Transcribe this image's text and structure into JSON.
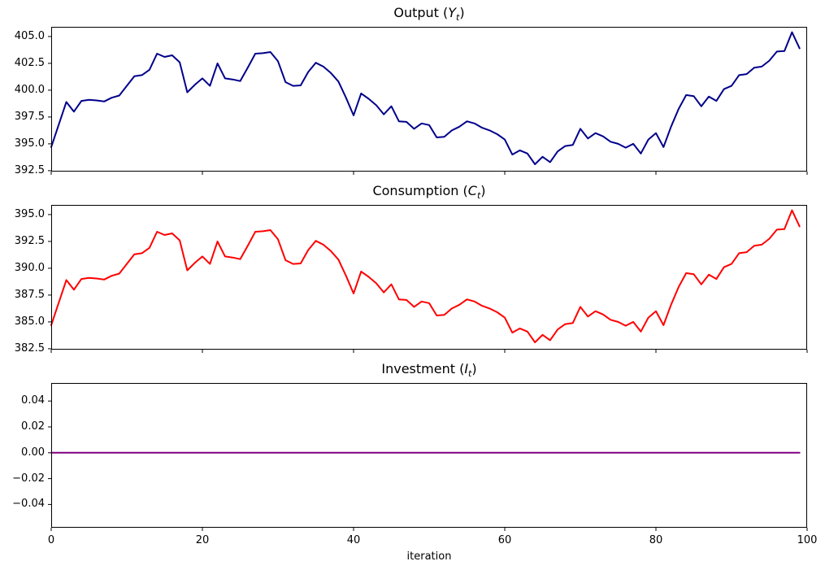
{
  "figure": {
    "background": "#ffffff",
    "frame_color": "#000000"
  },
  "chart_data": {
    "type": "line",
    "layout": "3 vertically stacked subplots, shared x axis, grid off, no legend, box spines",
    "x_axis": {
      "label": "iteration",
      "xlim": [
        0,
        100
      ],
      "ticks": [
        0,
        20,
        40,
        60,
        80,
        100
      ],
      "tick_labels": [
        "0",
        "20",
        "40",
        "60",
        "80",
        "100"
      ]
    },
    "charts": [
      {
        "name": "output",
        "title": {
          "prefix": "Output (",
          "var": "Y",
          "sub": "t",
          "suffix": ")"
        },
        "color": "#00008B",
        "ylim": [
          392.42,
          405.9
        ],
        "yticks": [
          405.0,
          402.5,
          400.0,
          397.5,
          395.0,
          392.5
        ],
        "ytick_labels": [
          "405.0",
          "402.5",
          "400.0",
          "397.5",
          "395.0",
          "392.5"
        ],
        "values": [
          394.7,
          396.8,
          398.9,
          398.0,
          399.0,
          399.1,
          399.05,
          398.95,
          399.3,
          399.5,
          400.4,
          401.3,
          401.4,
          401.9,
          403.4,
          403.1,
          403.25,
          402.6,
          399.8,
          400.5,
          401.1,
          400.4,
          402.5,
          401.1,
          401.0,
          400.85,
          402.1,
          403.4,
          403.45,
          403.55,
          402.7,
          400.75,
          400.4,
          400.45,
          401.7,
          402.55,
          402.2,
          401.6,
          400.8,
          399.3,
          397.65,
          399.7,
          399.2,
          398.6,
          397.75,
          398.5,
          397.1,
          397.05,
          396.4,
          396.9,
          396.75,
          395.6,
          395.65,
          396.25,
          396.6,
          397.1,
          396.9,
          396.5,
          396.25,
          395.9,
          395.4,
          394.0,
          394.4,
          394.1,
          393.1,
          393.8,
          393.3,
          394.3,
          394.8,
          394.9,
          396.4,
          395.5,
          396.0,
          395.7,
          395.2,
          395.0,
          394.65,
          395.0,
          394.1,
          395.4,
          396.0,
          394.7,
          396.6,
          398.25,
          399.55,
          399.45,
          398.5,
          399.4,
          399.0,
          400.1,
          400.4,
          401.4,
          401.5,
          402.1,
          402.2,
          402.75,
          403.6,
          403.65,
          405.4,
          403.9
        ]
      },
      {
        "name": "consumption",
        "title": {
          "prefix": "Consumption (",
          "var": "C",
          "sub": "t",
          "suffix": ")"
        },
        "color": "#FF0000",
        "ylim": [
          382.42,
          395.9
        ],
        "yticks": [
          395.0,
          392.5,
          390.0,
          387.5,
          385.0,
          382.5
        ],
        "ytick_labels": [
          "395.0",
          "392.5",
          "390.0",
          "387.5",
          "385.0",
          "382.5"
        ],
        "values": [
          384.7,
          386.8,
          388.9,
          388.0,
          389.0,
          389.1,
          389.05,
          388.95,
          389.3,
          389.5,
          390.4,
          391.3,
          391.4,
          391.9,
          393.4,
          393.1,
          393.25,
          392.6,
          389.8,
          390.5,
          391.1,
          390.4,
          392.5,
          391.1,
          391.0,
          390.85,
          392.1,
          393.4,
          393.45,
          393.55,
          392.7,
          390.75,
          390.4,
          390.45,
          391.7,
          392.55,
          392.2,
          391.6,
          390.8,
          389.3,
          387.65,
          389.7,
          389.2,
          388.6,
          387.75,
          388.5,
          387.1,
          387.05,
          386.4,
          386.9,
          386.75,
          385.6,
          385.65,
          386.25,
          386.6,
          387.1,
          386.9,
          386.5,
          386.25,
          385.9,
          385.4,
          384.0,
          384.4,
          384.1,
          383.1,
          383.8,
          383.3,
          384.3,
          384.8,
          384.9,
          386.4,
          385.5,
          386.0,
          385.7,
          385.2,
          385.0,
          384.65,
          385.0,
          384.1,
          385.4,
          386.0,
          384.7,
          386.6,
          388.25,
          389.55,
          389.45,
          388.5,
          389.4,
          389.0,
          390.1,
          390.4,
          391.4,
          391.5,
          392.1,
          392.2,
          392.75,
          393.6,
          393.65,
          395.4,
          393.9
        ]
      },
      {
        "name": "investment",
        "title": {
          "prefix": "Investment (",
          "var": "I",
          "sub": "t",
          "suffix": ")"
        },
        "color": "#800080",
        "ylim": [
          -0.058,
          0.054
        ],
        "yticks": [
          0.04,
          0.02,
          0.0,
          -0.02,
          -0.04
        ],
        "ytick_labels": [
          "0.04",
          "0.02",
          "0.00",
          "−0.02",
          "−0.04"
        ],
        "constant": 0.0,
        "count": 100
      }
    ]
  }
}
